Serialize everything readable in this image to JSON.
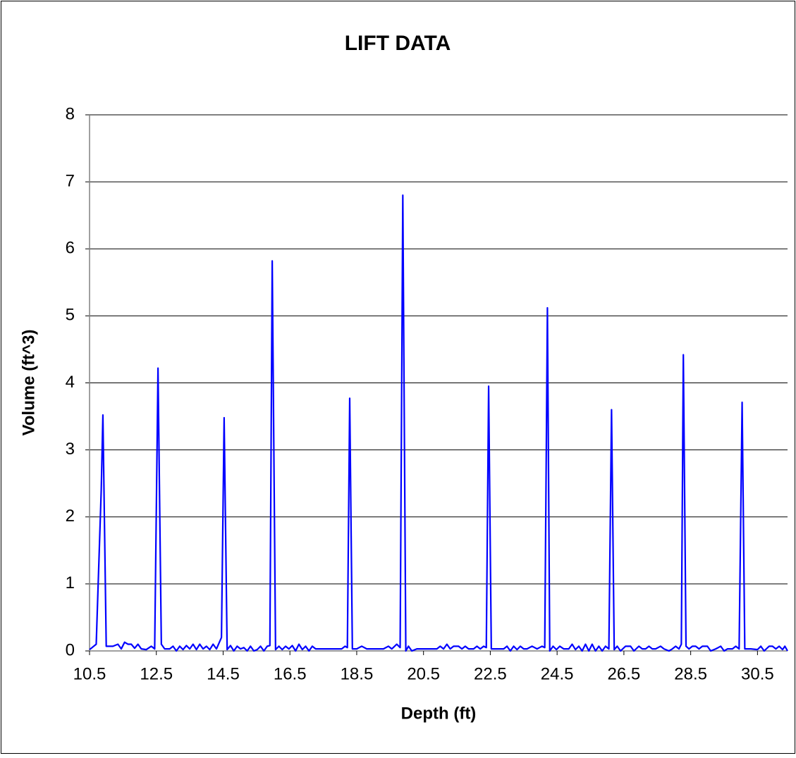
{
  "chart_data": {
    "type": "line",
    "title": "LIFT DATA",
    "x_label": "Depth (ft)",
    "y_label": "Volume (ft^3)",
    "x": [
      10.5,
      10.7,
      10.85,
      10.9,
      11.0,
      11.2,
      11.35,
      11.45,
      11.55,
      11.65,
      11.75,
      11.85,
      11.95,
      12.05,
      12.2,
      12.35,
      12.45,
      12.55,
      12.65,
      12.75,
      12.9,
      13.0,
      13.1,
      13.2,
      13.3,
      13.4,
      13.5,
      13.6,
      13.7,
      13.8,
      13.9,
      14.0,
      14.1,
      14.2,
      14.3,
      14.45,
      14.53,
      14.62,
      14.72,
      14.82,
      14.92,
      15.02,
      15.12,
      15.22,
      15.32,
      15.42,
      15.52,
      15.62,
      15.72,
      15.82,
      15.9,
      15.97,
      16.07,
      16.17,
      16.27,
      16.37,
      16.47,
      16.57,
      16.67,
      16.77,
      16.87,
      16.97,
      17.07,
      17.17,
      17.27,
      17.5,
      17.8,
      18.05,
      18.15,
      18.22,
      18.29,
      18.37,
      18.5,
      18.65,
      18.8,
      19.0,
      19.3,
      19.45,
      19.55,
      19.7,
      19.8,
      19.88,
      19.97,
      20.05,
      20.15,
      20.3,
      20.6,
      20.9,
      21.0,
      21.1,
      21.2,
      21.3,
      21.4,
      21.55,
      21.65,
      21.75,
      21.85,
      22.0,
      22.1,
      22.2,
      22.3,
      22.38,
      22.45,
      22.53,
      22.7,
      22.9,
      23.0,
      23.1,
      23.2,
      23.3,
      23.4,
      23.5,
      23.6,
      23.75,
      23.9,
      24.05,
      24.13,
      24.21,
      24.28,
      24.38,
      24.48,
      24.58,
      24.7,
      24.85,
      24.95,
      25.05,
      25.15,
      25.25,
      25.35,
      25.45,
      25.55,
      25.65,
      25.75,
      25.85,
      25.95,
      26.05,
      26.13,
      26.21,
      26.3,
      26.4,
      26.55,
      26.7,
      26.8,
      26.95,
      27.05,
      27.15,
      27.25,
      27.35,
      27.45,
      27.6,
      27.7,
      27.85,
      27.95,
      28.05,
      28.15,
      28.22,
      28.28,
      28.36,
      28.45,
      28.55,
      28.65,
      28.75,
      28.85,
      29.0,
      29.1,
      29.25,
      29.4,
      29.5,
      29.6,
      29.75,
      29.85,
      29.95,
      30.04,
      30.12,
      30.3,
      30.5,
      30.6,
      30.7,
      30.85,
      30.95,
      31.05,
      31.15,
      31.25,
      31.32,
      31.4
    ],
    "series": [
      {
        "color": "#0000ff",
        "values": [
          0.02,
          0.1,
          2.4,
          3.52,
          0.07,
          0.07,
          0.1,
          0.03,
          0.13,
          0.1,
          0.1,
          0.04,
          0.1,
          0.03,
          0.02,
          0.07,
          0.03,
          4.22,
          0.1,
          0.03,
          0.03,
          0.07,
          0.0,
          0.07,
          0.02,
          0.08,
          0.03,
          0.1,
          0.02,
          0.1,
          0.03,
          0.07,
          0.02,
          0.1,
          0.03,
          0.2,
          3.48,
          0.02,
          0.08,
          0.0,
          0.07,
          0.03,
          0.05,
          0.0,
          0.07,
          0.0,
          0.02,
          0.07,
          0.0,
          0.07,
          0.08,
          5.82,
          0.02,
          0.07,
          0.02,
          0.07,
          0.03,
          0.08,
          0.0,
          0.1,
          0.02,
          0.07,
          0.0,
          0.07,
          0.03,
          0.03,
          0.03,
          0.03,
          0.07,
          0.05,
          3.77,
          0.03,
          0.03,
          0.07,
          0.03,
          0.03,
          0.03,
          0.07,
          0.03,
          0.1,
          0.05,
          6.8,
          0.0,
          0.07,
          0.0,
          0.03,
          0.03,
          0.03,
          0.07,
          0.03,
          0.1,
          0.03,
          0.07,
          0.07,
          0.03,
          0.07,
          0.03,
          0.03,
          0.07,
          0.03,
          0.07,
          0.05,
          3.95,
          0.03,
          0.03,
          0.03,
          0.07,
          0.0,
          0.07,
          0.02,
          0.07,
          0.03,
          0.03,
          0.07,
          0.03,
          0.07,
          0.05,
          5.12,
          0.0,
          0.07,
          0.02,
          0.07,
          0.03,
          0.03,
          0.1,
          0.02,
          0.07,
          0.0,
          0.1,
          0.0,
          0.1,
          0.0,
          0.07,
          0.0,
          0.07,
          0.03,
          3.6,
          0.02,
          0.07,
          0.0,
          0.07,
          0.07,
          0.0,
          0.07,
          0.03,
          0.03,
          0.07,
          0.03,
          0.03,
          0.07,
          0.03,
          0.0,
          0.03,
          0.07,
          0.03,
          0.1,
          4.42,
          0.07,
          0.03,
          0.07,
          0.07,
          0.03,
          0.07,
          0.07,
          0.0,
          0.03,
          0.07,
          0.0,
          0.03,
          0.03,
          0.07,
          0.03,
          3.71,
          0.03,
          0.03,
          0.02,
          0.07,
          0.0,
          0.07,
          0.07,
          0.03,
          0.07,
          0.02,
          0.07,
          0.0
        ]
      }
    ],
    "xlim": [
      10.5,
      31.4
    ],
    "ylim": [
      0,
      8
    ],
    "xticks": [
      10.5,
      12.5,
      14.5,
      16.5,
      18.5,
      20.5,
      22.5,
      24.5,
      26.5,
      28.5,
      30.5
    ],
    "yticks": [
      0,
      1,
      2,
      3,
      4,
      5,
      6,
      7,
      8
    ],
    "grid": true
  }
}
